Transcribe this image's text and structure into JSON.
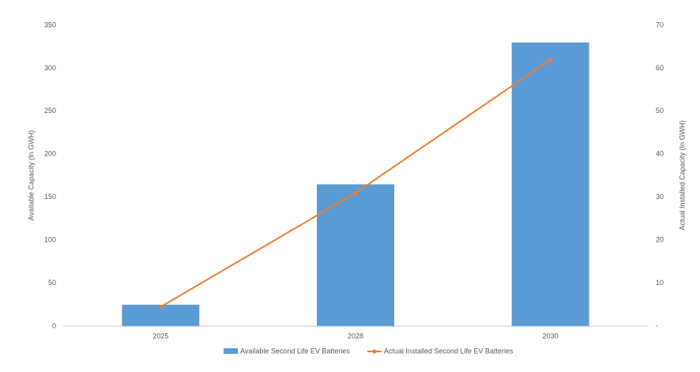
{
  "chart_data": {
    "type": "bar-line",
    "categories": [
      "2025",
      "2028",
      "2030"
    ],
    "series": [
      {
        "name": "Available Second Life EV Batteries",
        "type": "bar",
        "color": "#5b9bd5",
        "values": [
          25,
          165,
          330
        ]
      },
      {
        "name": "Actual Installed Second Life EV Batteries",
        "type": "line",
        "axis": "y2",
        "color": "#ed7d31",
        "values": [
          4.5,
          31,
          62
        ]
      }
    ],
    "ylabel": "Available Capacity (In GWH)",
    "y2label": "Actual Installed Capacity (In GWH)",
    "ylim": [
      0,
      350
    ],
    "yticks": [
      0,
      50,
      100,
      150,
      200,
      250,
      300,
      350
    ],
    "y2lim": [
      0,
      70
    ],
    "y2ticks": [
      {
        "value": 0,
        "label": "-"
      },
      10,
      20,
      30,
      40,
      50,
      60,
      70
    ],
    "legend": "bottom",
    "grid": false
  }
}
